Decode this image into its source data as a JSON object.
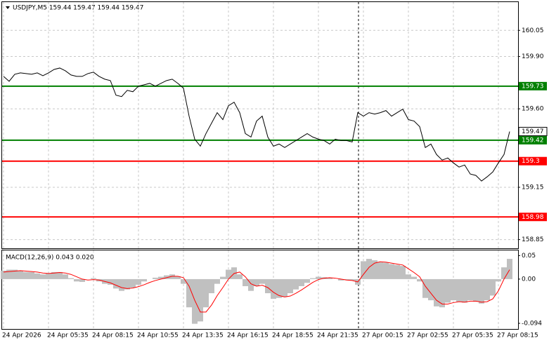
{
  "chart_data": [
    {
      "type": "line",
      "title": "USDJPY,M5  159.44 159.47 159.44 159.47",
      "categories": [
        "24 Apr 2026",
        null,
        null,
        null,
        null,
        null,
        null,
        null,
        "24 Apr 05:35",
        null,
        null,
        null,
        null,
        null,
        null,
        null,
        "24 Apr 08:15",
        null,
        null,
        null,
        null,
        null,
        null,
        null,
        "24 Apr 10:55",
        null,
        null,
        null,
        null,
        null,
        null,
        null,
        "24 Apr 13:35",
        null,
        null,
        null,
        null,
        null,
        null,
        null,
        "24 Apr 16:15",
        null,
        null,
        null,
        null,
        null,
        null,
        null,
        "24 Apr 18:55",
        null,
        null,
        null,
        null,
        null,
        null,
        null,
        "24 Apr 21:35",
        null,
        null,
        null,
        null,
        null,
        null,
        null,
        "27 Apr 00:15",
        null,
        null,
        null,
        null,
        null,
        null,
        null,
        "27 Apr 02:55",
        null,
        null,
        null,
        null,
        null,
        null,
        null,
        "27 Apr 05:35",
        null,
        null,
        null,
        null,
        null,
        null,
        null,
        "27 Apr 08:15",
        null,
        null
      ],
      "color": "#000000",
      "values": [
        159.786,
        159.758,
        159.798,
        159.806,
        159.802,
        159.798,
        159.806,
        159.79,
        159.806,
        159.826,
        159.834,
        159.818,
        159.794,
        159.786,
        159.786,
        159.802,
        159.81,
        159.786,
        159.77,
        159.762,
        159.678,
        159.67,
        159.706,
        159.698,
        159.73,
        159.738,
        159.746,
        159.73,
        159.746,
        159.762,
        159.77,
        159.746,
        159.718,
        159.558,
        159.426,
        159.386,
        159.458,
        159.518,
        159.578,
        159.538,
        159.618,
        159.638,
        159.578,
        159.458,
        159.438,
        159.53,
        159.558,
        159.438,
        159.386,
        159.398,
        159.378,
        159.398,
        159.418,
        159.438,
        159.458,
        159.438,
        159.426,
        159.418,
        159.398,
        159.426,
        159.418,
        159.418,
        159.41,
        159.578,
        159.558,
        159.578,
        159.57,
        159.578,
        159.59,
        159.558,
        159.578,
        159.598,
        159.538,
        159.53,
        159.498,
        159.378,
        159.398,
        159.338,
        159.306,
        159.318,
        159.29,
        159.266,
        159.278,
        159.226,
        159.218,
        159.186,
        159.21,
        159.238,
        159.29,
        159.338,
        159.47
      ],
      "ylim": [
        158.8,
        160.212
      ],
      "yticks": [
        160.05,
        {
          "value": 159.9,
          "label": "159.90"
        },
        {
          "value": 159.6,
          "label": "159.60"
        },
        159.15,
        158.85
      ],
      "grid": true,
      "levels": [
        {
          "value": 159.73,
          "color": "#008000"
        },
        {
          "value": 159.42,
          "color": "#008000"
        },
        {
          "value": 159.3,
          "color": "#ff0000"
        },
        {
          "value": 158.98,
          "color": "#ff0000"
        }
      ],
      "price_label": 159.47
    },
    {
      "type": "macd",
      "title": "MACD(12,26,9) 0.043 0.020",
      "series": [
        {
          "style": "bar",
          "color": "#c0c0c0",
          "values": [
            0.018,
            0.02,
            0.02,
            0.018,
            0.015,
            0.015,
            0.012,
            0.01,
            0.012,
            0.015,
            0.015,
            0.01,
            0.002,
            -0.005,
            -0.006,
            0.0,
            0.002,
            -0.005,
            -0.01,
            -0.012,
            -0.02,
            -0.025,
            -0.022,
            -0.018,
            -0.012,
            -0.005,
            0.0,
            0.003,
            0.005,
            0.008,
            0.01,
            0.006,
            -0.01,
            -0.06,
            -0.095,
            -0.09,
            -0.06,
            -0.03,
            -0.01,
            0.005,
            0.02,
            0.025,
            0.01,
            -0.015,
            -0.025,
            -0.015,
            -0.01,
            -0.03,
            -0.042,
            -0.04,
            -0.038,
            -0.03,
            -0.022,
            -0.015,
            -0.008,
            0.002,
            0.005,
            0.004,
            0.003,
            0.0,
            -0.003,
            -0.002,
            -0.003,
            -0.012,
            0.038,
            0.043,
            0.04,
            0.036,
            0.035,
            0.032,
            0.03,
            0.028,
            0.01,
            0.005,
            -0.005,
            -0.04,
            -0.045,
            -0.058,
            -0.06,
            -0.05,
            -0.045,
            -0.048,
            -0.05,
            -0.045,
            -0.048,
            -0.052,
            -0.045,
            -0.035,
            -0.005,
            0.025,
            0.043
          ]
        },
        {
          "style": "line",
          "color": "#ff0000",
          "values": [
            0.015,
            0.016,
            0.017,
            0.018,
            0.017,
            0.016,
            0.015,
            0.013,
            0.012,
            0.013,
            0.014,
            0.013,
            0.01,
            0.005,
            0.0,
            -0.002,
            -0.001,
            -0.002,
            -0.005,
            -0.008,
            -0.013,
            -0.018,
            -0.02,
            -0.019,
            -0.016,
            -0.012,
            -0.007,
            -0.003,
            0.0,
            0.003,
            0.006,
            0.006,
            0.003,
            -0.015,
            -0.045,
            -0.07,
            -0.07,
            -0.055,
            -0.035,
            -0.018,
            0.0,
            0.012,
            0.015,
            0.005,
            -0.01,
            -0.015,
            -0.013,
            -0.018,
            -0.028,
            -0.035,
            -0.038,
            -0.036,
            -0.03,
            -0.023,
            -0.015,
            -0.007,
            -0.001,
            0.002,
            0.003,
            0.002,
            0.0,
            -0.002,
            -0.003,
            -0.006,
            0.01,
            0.025,
            0.034,
            0.037,
            0.036,
            0.034,
            0.032,
            0.03,
            0.022,
            0.014,
            0.005,
            -0.015,
            -0.03,
            -0.045,
            -0.053,
            -0.053,
            -0.05,
            -0.048,
            -0.049,
            -0.047,
            -0.047,
            -0.049,
            -0.048,
            -0.042,
            -0.025,
            0.0,
            0.02
          ]
        }
      ],
      "ylim": [
        -0.106,
        0.061
      ],
      "yticks": [
        0.05,
        {
          "value": 0,
          "label": "0.00"
        },
        -0.094
      ]
    }
  ]
}
